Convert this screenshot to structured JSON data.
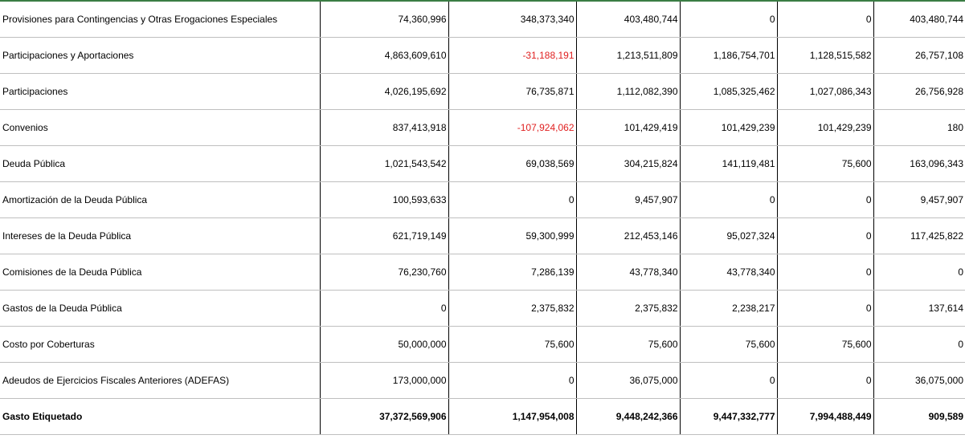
{
  "colors": {
    "negative": "#e02020",
    "top_border": "#3a7d44",
    "gridline": "#bfbfbf"
  },
  "rows": [
    {
      "label": "Provisiones para Contingencias y Otras Erogaciones Especiales",
      "values": [
        "74,360,996",
        "348,373,340",
        "403,480,744",
        "0",
        "0",
        "403,480,744"
      ],
      "negative": [
        false,
        false,
        false,
        false,
        false,
        false
      ],
      "bold": false
    },
    {
      "label": "Participaciones y Aportaciones",
      "values": [
        "4,863,609,610",
        "-31,188,191",
        "1,213,511,809",
        "1,186,754,701",
        "1,128,515,582",
        "26,757,108"
      ],
      "negative": [
        false,
        true,
        false,
        false,
        false,
        false
      ],
      "bold": false
    },
    {
      "label": "Participaciones",
      "values": [
        "4,026,195,692",
        "76,735,871",
        "1,112,082,390",
        "1,085,325,462",
        "1,027,086,343",
        "26,756,928"
      ],
      "negative": [
        false,
        false,
        false,
        false,
        false,
        false
      ],
      "bold": false
    },
    {
      "label": "Convenios",
      "values": [
        "837,413,918",
        "-107,924,062",
        "101,429,419",
        "101,429,239",
        "101,429,239",
        "180"
      ],
      "negative": [
        false,
        true,
        false,
        false,
        false,
        false
      ],
      "bold": false
    },
    {
      "label": "Deuda Pública",
      "values": [
        "1,021,543,542",
        "69,038,569",
        "304,215,824",
        "141,119,481",
        "75,600",
        "163,096,343"
      ],
      "negative": [
        false,
        false,
        false,
        false,
        false,
        false
      ],
      "bold": false
    },
    {
      "label": "Amortización de la Deuda Pública",
      "values": [
        "100,593,633",
        "0",
        "9,457,907",
        "0",
        "0",
        "9,457,907"
      ],
      "negative": [
        false,
        false,
        false,
        false,
        false,
        false
      ],
      "bold": false
    },
    {
      "label": "Intereses de la Deuda Pública",
      "values": [
        "621,719,149",
        "59,300,999",
        "212,453,146",
        "95,027,324",
        "0",
        "117,425,822"
      ],
      "negative": [
        false,
        false,
        false,
        false,
        false,
        false
      ],
      "bold": false
    },
    {
      "label": "Comisiones de la Deuda Pública",
      "values": [
        "76,230,760",
        "7,286,139",
        "43,778,340",
        "43,778,340",
        "0",
        "0"
      ],
      "negative": [
        false,
        false,
        false,
        false,
        false,
        false
      ],
      "bold": false
    },
    {
      "label": "Gastos de la Deuda Pública",
      "values": [
        "0",
        "2,375,832",
        "2,375,832",
        "2,238,217",
        "0",
        "137,614"
      ],
      "negative": [
        false,
        false,
        false,
        false,
        false,
        false
      ],
      "bold": false
    },
    {
      "label": "Costo por Coberturas",
      "values": [
        "50,000,000",
        "75,600",
        "75,600",
        "75,600",
        "75,600",
        "0"
      ],
      "negative": [
        false,
        false,
        false,
        false,
        false,
        false
      ],
      "bold": false
    },
    {
      "label": "Adeudos de Ejercicios Fiscales Anteriores (ADEFAS)",
      "values": [
        "173,000,000",
        "0",
        "36,075,000",
        "0",
        "0",
        "36,075,000"
      ],
      "negative": [
        false,
        false,
        false,
        false,
        false,
        false
      ],
      "bold": false
    },
    {
      "label": "Gasto Etiquetado",
      "values": [
        "37,372,569,906",
        "1,147,954,008",
        "9,448,242,366",
        "9,447,332,777",
        "7,994,488,449",
        "909,589"
      ],
      "negative": [
        false,
        false,
        false,
        false,
        false,
        false
      ],
      "bold": true
    }
  ]
}
